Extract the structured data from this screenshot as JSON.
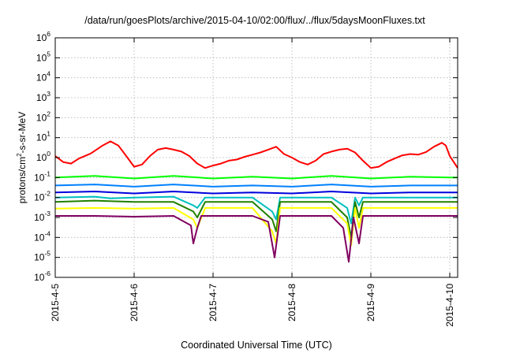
{
  "chart_data": {
    "type": "line",
    "title": "/data/run/goesPlots/archive/2015-04-10/02:00/flux/../flux/5daysMoonFluxes.txt",
    "xlabel": "Coordinated Universal Time (UTC)",
    "ylabel": {
      "pre": "protons/cm",
      "sup": "2",
      "post": "-s-sr-MeV"
    },
    "y_scale": "log",
    "ylim_exp": [
      -6,
      6
    ],
    "y_tick_exponents": [
      -6,
      -5,
      -4,
      -3,
      -2,
      -1,
      0,
      1,
      2,
      3,
      4,
      5,
      6
    ],
    "x_range_days": [
      0,
      5.1
    ],
    "x_ticks": [
      {
        "day": 0,
        "label": "2015-4-5"
      },
      {
        "day": 1,
        "label": "2015-4-6"
      },
      {
        "day": 2,
        "label": "2015-4-7"
      },
      {
        "day": 3,
        "label": "2015-4-8"
      },
      {
        "day": 4,
        "label": "2015-4-9"
      },
      {
        "day": 5,
        "label": "2015-4-10"
      }
    ],
    "grid": true,
    "series": [
      {
        "color": "#ff0000",
        "points": [
          [
            0,
            1.2
          ],
          [
            0.1,
            0.6
          ],
          [
            0.2,
            0.5
          ],
          [
            0.3,
            0.9
          ],
          [
            0.45,
            1.6
          ],
          [
            0.6,
            4
          ],
          [
            0.7,
            6.5
          ],
          [
            0.8,
            4
          ],
          [
            0.9,
            1.2
          ],
          [
            1.0,
            0.35
          ],
          [
            1.1,
            0.45
          ],
          [
            1.2,
            1.2
          ],
          [
            1.3,
            2.5
          ],
          [
            1.4,
            3
          ],
          [
            1.5,
            2.5
          ],
          [
            1.6,
            2
          ],
          [
            1.7,
            1.2
          ],
          [
            1.8,
            0.5
          ],
          [
            1.9,
            0.3
          ],
          [
            2.0,
            0.4
          ],
          [
            2.1,
            0.5
          ],
          [
            2.2,
            0.7
          ],
          [
            2.3,
            0.8
          ],
          [
            2.4,
            1.1
          ],
          [
            2.5,
            1.4
          ],
          [
            2.6,
            1.8
          ],
          [
            2.7,
            2.5
          ],
          [
            2.8,
            3.5
          ],
          [
            2.9,
            1.5
          ],
          [
            3.0,
            1.0
          ],
          [
            3.1,
            0.6
          ],
          [
            3.2,
            0.45
          ],
          [
            3.3,
            0.7
          ],
          [
            3.4,
            1.5
          ],
          [
            3.5,
            2.0
          ],
          [
            3.6,
            2.5
          ],
          [
            3.7,
            2.8
          ],
          [
            3.8,
            1.8
          ],
          [
            3.9,
            0.7
          ],
          [
            4.0,
            0.3
          ],
          [
            4.1,
            0.35
          ],
          [
            4.2,
            0.6
          ],
          [
            4.3,
            0.9
          ],
          [
            4.4,
            1.3
          ],
          [
            4.5,
            1.5
          ],
          [
            4.6,
            1.4
          ],
          [
            4.7,
            1.9
          ],
          [
            4.8,
            3.5
          ],
          [
            4.9,
            5.5
          ],
          [
            4.95,
            4
          ],
          [
            5.0,
            1.2
          ],
          [
            5.05,
            0.6
          ],
          [
            5.1,
            0.3
          ]
        ]
      },
      {
        "color": "#00ff00",
        "points": [
          [
            0,
            0.1
          ],
          [
            0.5,
            0.12
          ],
          [
            1.0,
            0.09
          ],
          [
            1.5,
            0.12
          ],
          [
            2.0,
            0.09
          ],
          [
            2.5,
            0.11
          ],
          [
            3.0,
            0.09
          ],
          [
            3.5,
            0.12
          ],
          [
            4.0,
            0.09
          ],
          [
            4.5,
            0.11
          ],
          [
            5.0,
            0.1
          ],
          [
            5.1,
            0.1
          ]
        ]
      },
      {
        "color": "#0080ff",
        "points": [
          [
            0,
            0.04
          ],
          [
            0.5,
            0.045
          ],
          [
            1.0,
            0.035
          ],
          [
            1.5,
            0.045
          ],
          [
            2.0,
            0.035
          ],
          [
            2.5,
            0.04
          ],
          [
            3.0,
            0.035
          ],
          [
            3.5,
            0.045
          ],
          [
            4.0,
            0.035
          ],
          [
            4.5,
            0.04
          ],
          [
            5.0,
            0.04
          ],
          [
            5.1,
            0.04
          ]
        ]
      },
      {
        "color": "#0000dd",
        "points": [
          [
            0,
            0.018
          ],
          [
            0.5,
            0.02
          ],
          [
            1.0,
            0.016
          ],
          [
            1.5,
            0.02
          ],
          [
            2.0,
            0.016
          ],
          [
            2.5,
            0.018
          ],
          [
            3.0,
            0.016
          ],
          [
            3.5,
            0.02
          ],
          [
            4.0,
            0.016
          ],
          [
            4.5,
            0.018
          ],
          [
            5.0,
            0.018
          ],
          [
            5.1,
            0.018
          ]
        ]
      },
      {
        "color": "#00c0c0",
        "points": [
          [
            0,
            0.01
          ],
          [
            0.5,
            0.011
          ],
          [
            0.7,
            0.009
          ],
          [
            1.0,
            0.01
          ],
          [
            1.5,
            0.011
          ],
          [
            1.75,
            0.004
          ],
          [
            1.8,
            0.003
          ],
          [
            1.9,
            0.01
          ],
          [
            2.5,
            0.01
          ],
          [
            2.75,
            0.002
          ],
          [
            2.8,
            0.0008
          ],
          [
            2.85,
            0.01
          ],
          [
            3.5,
            0.01
          ],
          [
            3.7,
            0.003
          ],
          [
            3.75,
            0.0005
          ],
          [
            3.8,
            0.01
          ],
          [
            3.85,
            0.004
          ],
          [
            3.9,
            0.01
          ],
          [
            4.5,
            0.01
          ],
          [
            5.0,
            0.01
          ],
          [
            5.1,
            0.01
          ]
        ]
      },
      {
        "color": "#208000",
        "points": [
          [
            0,
            0.006
          ],
          [
            0.5,
            0.007
          ],
          [
            1.0,
            0.006
          ],
          [
            1.5,
            0.006
          ],
          [
            1.75,
            0.002
          ],
          [
            1.8,
            0.001
          ],
          [
            1.9,
            0.006
          ],
          [
            2.5,
            0.006
          ],
          [
            2.75,
            0.0008
          ],
          [
            2.8,
            0.0002
          ],
          [
            2.85,
            0.006
          ],
          [
            3.5,
            0.006
          ],
          [
            3.7,
            0.001
          ],
          [
            3.75,
            0.0001
          ],
          [
            3.8,
            0.006
          ],
          [
            3.85,
            0.001
          ],
          [
            3.9,
            0.006
          ],
          [
            4.5,
            0.006
          ],
          [
            5.0,
            0.006
          ],
          [
            5.1,
            0.006
          ]
        ]
      },
      {
        "color": "#ffff00",
        "points": [
          [
            0,
            0.0028
          ],
          [
            0.5,
            0.003
          ],
          [
            1.0,
            0.0028
          ],
          [
            1.5,
            0.003
          ],
          [
            1.75,
            0.0008
          ],
          [
            1.8,
            0.0003
          ],
          [
            1.9,
            0.003
          ],
          [
            2.5,
            0.003
          ],
          [
            2.75,
            0.0002
          ],
          [
            2.8,
            5e-05
          ],
          [
            2.85,
            0.003
          ],
          [
            3.5,
            0.003
          ],
          [
            3.7,
            0.0005
          ],
          [
            3.75,
            4e-05
          ],
          [
            3.8,
            0.003
          ],
          [
            3.85,
            0.0003
          ],
          [
            3.9,
            0.003
          ],
          [
            4.5,
            0.003
          ],
          [
            5.0,
            0.003
          ],
          [
            5.1,
            0.003
          ]
        ]
      },
      {
        "color": "#800060",
        "points": [
          [
            0,
            0.0012
          ],
          [
            0.5,
            0.0012
          ],
          [
            1.0,
            0.0011
          ],
          [
            1.5,
            0.0012
          ],
          [
            1.72,
            0.0004
          ],
          [
            1.75,
            5e-05
          ],
          [
            1.8,
            0.0003
          ],
          [
            1.85,
            0.0012
          ],
          [
            2.5,
            0.0012
          ],
          [
            2.7,
            0.0006
          ],
          [
            2.78,
            1e-05
          ],
          [
            2.85,
            0.0012
          ],
          [
            3.5,
            0.0012
          ],
          [
            3.65,
            0.0003
          ],
          [
            3.72,
            6e-06
          ],
          [
            3.78,
            0.001
          ],
          [
            3.85,
            5e-05
          ],
          [
            3.9,
            0.0012
          ],
          [
            4.5,
            0.0012
          ],
          [
            5.0,
            0.0012
          ],
          [
            5.1,
            0.0012
          ]
        ]
      }
    ]
  }
}
